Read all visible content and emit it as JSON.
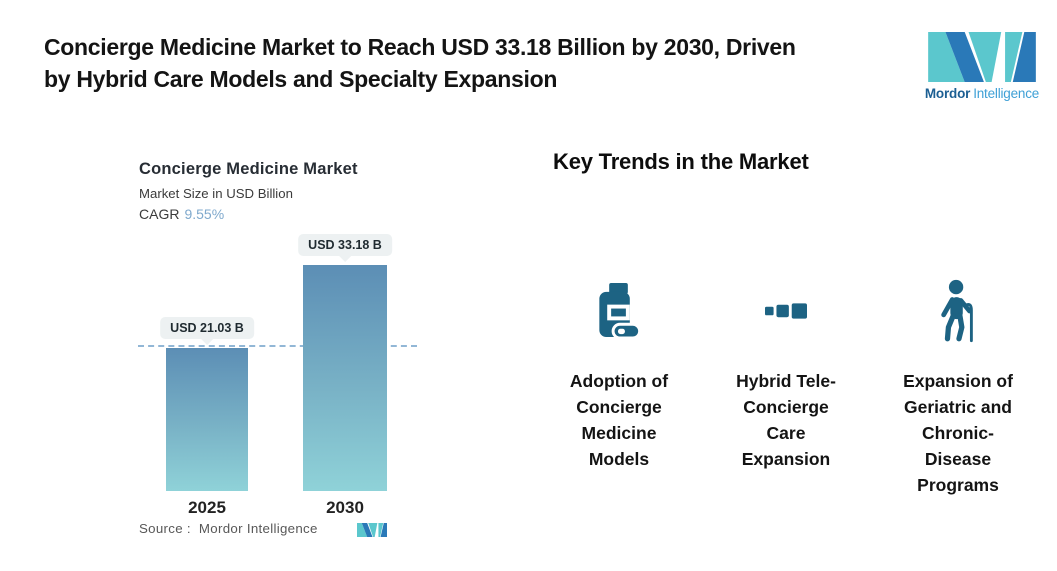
{
  "header": {
    "title": "Concierge Medicine Market to Reach USD 33.18 Billion by 2030, Driven by Hybrid Care Models and Specialty Expansion",
    "title_lines": [
      "Concierge Medicine Market to Reach USD 33.18 Billion by 2030, Driven",
      "by Hybrid Care Models and Specialty Expansion"
    ],
    "logo": {
      "name_bold": "Mordor",
      "name_light": "Intelligence"
    }
  },
  "chart": {
    "title": "Concierge Medicine Market",
    "subtitle": "Market Size in USD Billion",
    "cagr_label": "CAGR",
    "cagr_value": "9.55%",
    "bars": [
      {
        "year": "2025",
        "label": "USD 21.03 B",
        "value": 21.03
      },
      {
        "year": "2030",
        "label": "USD 33.18 B",
        "value": 33.18
      }
    ],
    "source_label": "Source :",
    "source_value": "Mordor Intelligence"
  },
  "chart_data": {
    "type": "bar",
    "categories": [
      "2025",
      "2030"
    ],
    "values": [
      21.03,
      33.18
    ],
    "title": "Concierge Medicine Market",
    "xlabel": "",
    "ylabel": "Market Size in USD Billion",
    "ylim": [
      0,
      34
    ],
    "bar_labels": [
      "USD 21.03 B",
      "USD 33.18 B"
    ],
    "cagr": "9.55%",
    "legend": "none",
    "grid": false,
    "annotations": [
      "horizontal dashed reference line at 2025 bar top (21.03)"
    ],
    "source": "Source : Mordor Intelligence"
  },
  "trends": {
    "heading": "Key Trends in the Market",
    "items": [
      {
        "icon": "pill-bottle-icon",
        "label": "Adoption of Concierge Medicine Models",
        "lines": [
          "Adoption of",
          "Concierge",
          "Medicine",
          "Models"
        ]
      },
      {
        "icon": "telehealth-squares-icon",
        "label": "Hybrid Tele-Concierge Care Expansion",
        "lines": [
          "Hybrid Tele-",
          "Concierge",
          "Care",
          "Expansion"
        ]
      },
      {
        "icon": "elderly-cane-icon",
        "label": "Expansion of Geriatric and Chronic-Disease Programs",
        "lines": [
          "Expansion of",
          "Geriatric and",
          "Chronic-",
          "Disease",
          "Programs"
        ]
      }
    ]
  },
  "colors": {
    "title_text": "#141414",
    "icon_blue": "#1D6383",
    "bar_top": "#5C8EB5",
    "bar_mid": "#79B2C6",
    "bar_bottom": "#8FD2D8",
    "dash_line": "#92B7D6",
    "badge_bg": "#EDF1F2",
    "badge_text": "#1F2A30",
    "cagr_value": "#7FA9CD",
    "source_text": "#585858",
    "logo_teal": "#5BC7CD",
    "logo_blue": "#2A79B8",
    "wordmark_dark": "#1C5F93",
    "wordmark_light": "#3FA0D6"
  }
}
